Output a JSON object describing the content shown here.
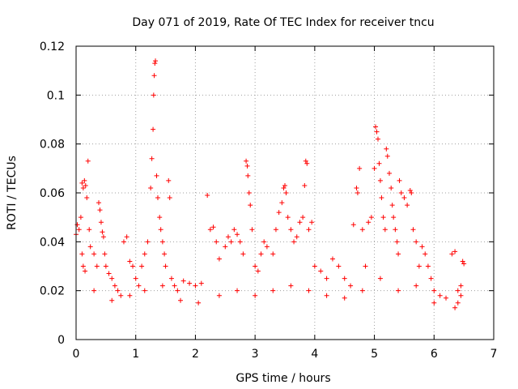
{
  "chart_data": {
    "type": "scatter",
    "title": "Day 071 of 2019, Rate Of TEC Index for receiver tncu",
    "xlabel": "GPS time / hours",
    "ylabel": "ROTI / TECUs",
    "xlim": [
      0,
      7
    ],
    "ylim": [
      0,
      0.12
    ],
    "x_ticks": [
      0,
      1,
      2,
      3,
      4,
      5,
      6,
      7
    ],
    "y_ticks": [
      0,
      0.02,
      0.04,
      0.06,
      0.08,
      0.1,
      0.12
    ],
    "x_tick_labels": [
      "0",
      "1",
      "2",
      "3",
      "4",
      "5",
      "6",
      "7"
    ],
    "y_tick_labels": [
      "0",
      "0.02",
      "0.04",
      "0.06",
      "0.08",
      "0.1",
      "0.12"
    ],
    "grid": true,
    "marker": "+",
    "color": "#ff0000",
    "series": [
      {
        "name": "ROTI",
        "points": [
          [
            0.0,
            0.043
          ],
          [
            0.02,
            0.047
          ],
          [
            0.05,
            0.045
          ],
          [
            0.08,
            0.05
          ],
          [
            0.1,
            0.064
          ],
          [
            0.12,
            0.062
          ],
          [
            0.14,
            0.065
          ],
          [
            0.16,
            0.063
          ],
          [
            0.18,
            0.058
          ],
          [
            0.2,
            0.073
          ],
          [
            0.22,
            0.045
          ],
          [
            0.24,
            0.038
          ],
          [
            0.1,
            0.035
          ],
          [
            0.12,
            0.03
          ],
          [
            0.15,
            0.028
          ],
          [
            0.3,
            0.035
          ],
          [
            0.35,
            0.03
          ],
          [
            0.38,
            0.056
          ],
          [
            0.4,
            0.053
          ],
          [
            0.42,
            0.048
          ],
          [
            0.44,
            0.044
          ],
          [
            0.46,
            0.042
          ],
          [
            0.48,
            0.035
          ],
          [
            0.5,
            0.03
          ],
          [
            0.55,
            0.027
          ],
          [
            0.6,
            0.025
          ],
          [
            0.65,
            0.022
          ],
          [
            0.7,
            0.02
          ],
          [
            0.75,
            0.018
          ],
          [
            0.8,
            0.04
          ],
          [
            0.85,
            0.042
          ],
          [
            0.9,
            0.032
          ],
          [
            0.95,
            0.03
          ],
          [
            1.0,
            0.025
          ],
          [
            1.05,
            0.022
          ],
          [
            1.1,
            0.03
          ],
          [
            1.15,
            0.035
          ],
          [
            1.2,
            0.04
          ],
          [
            1.25,
            0.062
          ],
          [
            1.27,
            0.074
          ],
          [
            1.29,
            0.086
          ],
          [
            1.3,
            0.1
          ],
          [
            1.31,
            0.108
          ],
          [
            1.32,
            0.113
          ],
          [
            1.33,
            0.114
          ],
          [
            1.35,
            0.067
          ],
          [
            1.37,
            0.058
          ],
          [
            1.4,
            0.05
          ],
          [
            1.42,
            0.045
          ],
          [
            1.45,
            0.04
          ],
          [
            1.48,
            0.035
          ],
          [
            1.5,
            0.03
          ],
          [
            1.55,
            0.065
          ],
          [
            1.57,
            0.058
          ],
          [
            1.6,
            0.025
          ],
          [
            1.65,
            0.022
          ],
          [
            1.7,
            0.02
          ],
          [
            1.8,
            0.024
          ],
          [
            1.9,
            0.023
          ],
          [
            2.0,
            0.022
          ],
          [
            2.1,
            0.023
          ],
          [
            2.2,
            0.059
          ],
          [
            2.25,
            0.045
          ],
          [
            2.3,
            0.046
          ],
          [
            2.35,
            0.04
          ],
          [
            2.4,
            0.033
          ],
          [
            2.5,
            0.038
          ],
          [
            2.55,
            0.042
          ],
          [
            2.6,
            0.04
          ],
          [
            2.65,
            0.045
          ],
          [
            2.7,
            0.043
          ],
          [
            2.75,
            0.04
          ],
          [
            2.8,
            0.035
          ],
          [
            2.85,
            0.073
          ],
          [
            2.87,
            0.071
          ],
          [
            2.88,
            0.067
          ],
          [
            2.9,
            0.06
          ],
          [
            2.92,
            0.055
          ],
          [
            2.95,
            0.045
          ],
          [
            3.0,
            0.03
          ],
          [
            3.05,
            0.028
          ],
          [
            3.1,
            0.035
          ],
          [
            3.15,
            0.04
          ],
          [
            3.2,
            0.038
          ],
          [
            3.3,
            0.035
          ],
          [
            3.35,
            0.045
          ],
          [
            3.4,
            0.052
          ],
          [
            3.45,
            0.056
          ],
          [
            3.48,
            0.062
          ],
          [
            3.5,
            0.063
          ],
          [
            3.52,
            0.06
          ],
          [
            3.55,
            0.05
          ],
          [
            3.6,
            0.045
          ],
          [
            3.65,
            0.04
          ],
          [
            3.7,
            0.042
          ],
          [
            3.75,
            0.048
          ],
          [
            3.8,
            0.05
          ],
          [
            3.83,
            0.063
          ],
          [
            3.85,
            0.073
          ],
          [
            3.87,
            0.072
          ],
          [
            3.9,
            0.045
          ],
          [
            3.95,
            0.048
          ],
          [
            4.0,
            0.03
          ],
          [
            4.1,
            0.028
          ],
          [
            4.2,
            0.025
          ],
          [
            4.3,
            0.033
          ],
          [
            4.4,
            0.03
          ],
          [
            4.5,
            0.025
          ],
          [
            4.6,
            0.022
          ],
          [
            4.65,
            0.047
          ],
          [
            4.7,
            0.062
          ],
          [
            4.72,
            0.06
          ],
          [
            4.75,
            0.07
          ],
          [
            4.8,
            0.045
          ],
          [
            4.85,
            0.03
          ],
          [
            4.9,
            0.048
          ],
          [
            4.95,
            0.05
          ],
          [
            5.0,
            0.07
          ],
          [
            5.02,
            0.087
          ],
          [
            5.04,
            0.085
          ],
          [
            5.06,
            0.082
          ],
          [
            5.08,
            0.072
          ],
          [
            5.1,
            0.065
          ],
          [
            5.12,
            0.058
          ],
          [
            5.15,
            0.05
          ],
          [
            5.18,
            0.045
          ],
          [
            5.2,
            0.078
          ],
          [
            5.22,
            0.075
          ],
          [
            5.25,
            0.068
          ],
          [
            5.28,
            0.062
          ],
          [
            5.3,
            0.055
          ],
          [
            5.32,
            0.05
          ],
          [
            5.35,
            0.045
          ],
          [
            5.38,
            0.04
          ],
          [
            5.4,
            0.035
          ],
          [
            5.42,
            0.065
          ],
          [
            5.45,
            0.06
          ],
          [
            5.5,
            0.058
          ],
          [
            5.55,
            0.055
          ],
          [
            5.6,
            0.061
          ],
          [
            5.62,
            0.06
          ],
          [
            5.65,
            0.045
          ],
          [
            5.7,
            0.04
          ],
          [
            5.75,
            0.03
          ],
          [
            5.8,
            0.038
          ],
          [
            5.85,
            0.035
          ],
          [
            5.9,
            0.03
          ],
          [
            5.95,
            0.025
          ],
          [
            6.0,
            0.02
          ],
          [
            6.1,
            0.018
          ],
          [
            6.2,
            0.017
          ],
          [
            6.3,
            0.035
          ],
          [
            6.35,
            0.036
          ],
          [
            6.4,
            0.02
          ],
          [
            6.45,
            0.022
          ],
          [
            6.48,
            0.032
          ],
          [
            6.5,
            0.031
          ],
          [
            6.45,
            0.018
          ],
          [
            6.4,
            0.015
          ],
          [
            6.35,
            0.013
          ],
          [
            0.3,
            0.02
          ],
          [
            0.6,
            0.016
          ],
          [
            0.9,
            0.018
          ],
          [
            1.15,
            0.02
          ],
          [
            1.45,
            0.022
          ],
          [
            1.75,
            0.016
          ],
          [
            2.05,
            0.015
          ],
          [
            2.4,
            0.018
          ],
          [
            2.7,
            0.02
          ],
          [
            3.0,
            0.018
          ],
          [
            3.3,
            0.02
          ],
          [
            3.6,
            0.022
          ],
          [
            3.9,
            0.02
          ],
          [
            4.2,
            0.018
          ],
          [
            4.5,
            0.017
          ],
          [
            4.8,
            0.02
          ],
          [
            5.1,
            0.025
          ],
          [
            5.4,
            0.02
          ],
          [
            5.7,
            0.022
          ],
          [
            6.0,
            0.015
          ]
        ]
      }
    ]
  }
}
